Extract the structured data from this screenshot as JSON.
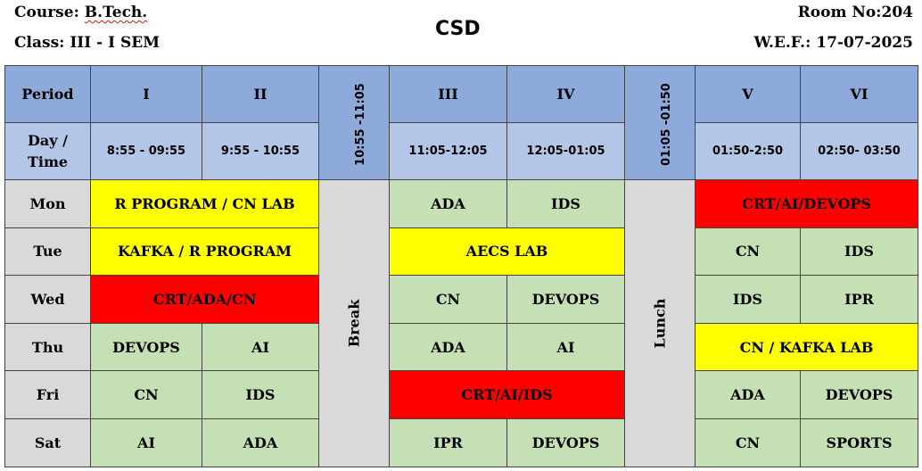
{
  "header": {
    "course_label": "Course:",
    "course_value": "B.Tech.",
    "class_label": "Class: III - I SEM",
    "department": "CSD",
    "room": "Room No:204",
    "wef": "W.E.F.: 17-07-2025"
  },
  "table": {
    "period_label": "Period",
    "day_time_label_1": "Day /",
    "day_time_label_2": "Time",
    "periods": [
      "I",
      "II",
      "III",
      "IV",
      "V",
      "VI"
    ],
    "times": [
      "8:55 - 09:55",
      "9:55 - 10:55",
      "11:05-12:05",
      "12:05-01:05",
      "01:50-2:50",
      "02:50- 03:50"
    ],
    "break_time": "10:55 -11:05",
    "break_label": "Break",
    "lunch_time": "01:05 -01:50",
    "lunch_label": "Lunch",
    "days": [
      "Mon",
      "Tue",
      "Wed",
      "Thu",
      "Fri",
      "Sat"
    ],
    "schedule": {
      "mon": {
        "p12": "R PROGRAM / CN LAB",
        "p3": "ADA",
        "p4": "IDS",
        "p56": "CRT/AI/DEVOPS"
      },
      "tue": {
        "p12": "KAFKA / R PROGRAM",
        "p34": "AECS LAB",
        "p5": "CN",
        "p6": "IDS"
      },
      "wed": {
        "p12": "CRT/ADA/CN",
        "p3": "CN",
        "p4": "DEVOPS",
        "p5": "IDS",
        "p6": "IPR"
      },
      "thu": {
        "p1": "DEVOPS",
        "p2": "AI",
        "p3": "ADA",
        "p4": "AI",
        "p56": "CN / KAFKA LAB"
      },
      "fri": {
        "p1": "CN",
        "p2": "IDS",
        "p34": "CRT/AI/IDS",
        "p5": "ADA",
        "p6": "DEVOPS"
      },
      "sat": {
        "p1": "AI",
        "p2": "ADA",
        "p3": "IPR",
        "p4": "DEVOPS",
        "p5": "CN",
        "p6": "SPORTS"
      }
    }
  },
  "colors": {
    "header_blue": "#8eaadb",
    "time_blue": "#b4c6e7",
    "day_gray": "#d9d9d9",
    "theory_green": "#c5e0b4",
    "lab_yellow": "#ffff00",
    "crt_red": "#ff0000"
  }
}
